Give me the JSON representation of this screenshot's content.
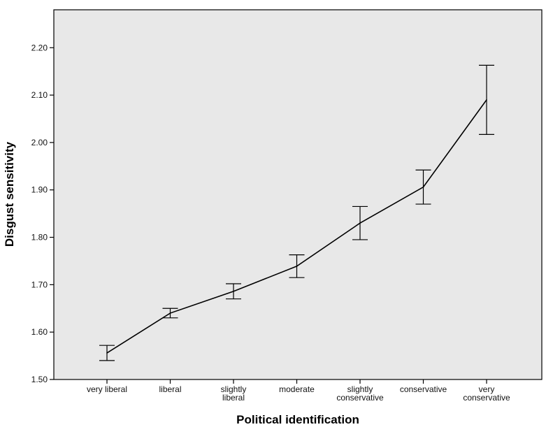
{
  "chart_data": {
    "type": "line",
    "xlabel": "Political identification",
    "ylabel": "Disgust sensitivity",
    "categories": [
      [
        "very liberal"
      ],
      [
        "liberal"
      ],
      [
        "slightly",
        "liberal"
      ],
      [
        "moderate"
      ],
      [
        "slightly",
        "conservative"
      ],
      [
        "conservative"
      ],
      [
        "very",
        "conservative"
      ]
    ],
    "series": [
      {
        "values": [
          1.556,
          1.64,
          1.686,
          1.739,
          1.83,
          1.906,
          2.09
        ],
        "error_low": [
          1.54,
          1.63,
          1.67,
          1.715,
          1.795,
          1.87,
          2.017
        ],
        "error_high": [
          1.572,
          1.65,
          1.702,
          1.763,
          1.865,
          1.942,
          2.163
        ]
      }
    ],
    "ylim": [
      1.5,
      2.28
    ],
    "yticks": [
      "1.50",
      "1.60",
      "1.70",
      "1.80",
      "1.90",
      "2.00",
      "2.10",
      "2.20"
    ],
    "grid": false,
    "colors": {
      "plot_background": "#e8e8e8",
      "line": "#000000"
    }
  }
}
